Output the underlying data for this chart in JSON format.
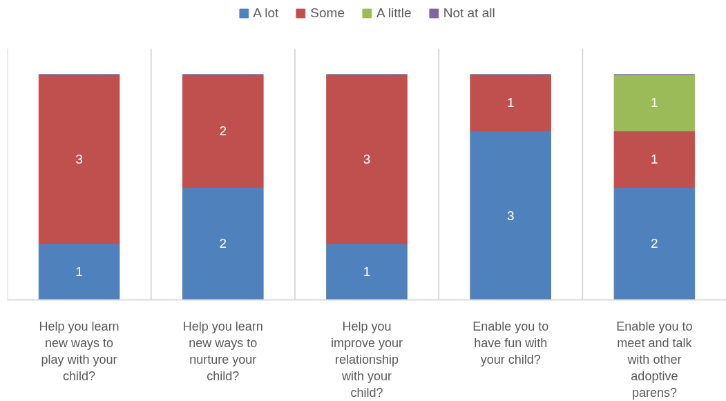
{
  "chart_data": {
    "type": "bar",
    "stacked": true,
    "categories": [
      "Help you learn new ways to play with your child?",
      "Help you learn new ways to nurture your child?",
      "Help you improve your relationship with your child?",
      "Enable you to have fun with your child?",
      "Enable you to meet and talk with other adoptive parens?"
    ],
    "series": [
      {
        "name": "A lot",
        "color": "#4f81bd",
        "values": [
          1,
          2,
          1,
          3,
          2
        ],
        "value_labels": [
          "1",
          "2",
          "1",
          "3",
          "2"
        ]
      },
      {
        "name": "Some",
        "color": "#c0504d",
        "values": [
          3,
          2,
          3,
          1,
          1
        ],
        "value_labels": [
          "3",
          "2",
          "3",
          "1",
          "1"
        ]
      },
      {
        "name": "A little",
        "color": "#9bbb59",
        "values": [
          0,
          0,
          0,
          0,
          1
        ],
        "value_labels": [
          null,
          null,
          null,
          null,
          "1"
        ]
      },
      {
        "name": "Not at all",
        "color": "#8064a2",
        "values": [
          0,
          0,
          0,
          0,
          0
        ]
      }
    ],
    "legend": "top",
    "grid": "x",
    "tick_labels": "x"
  }
}
